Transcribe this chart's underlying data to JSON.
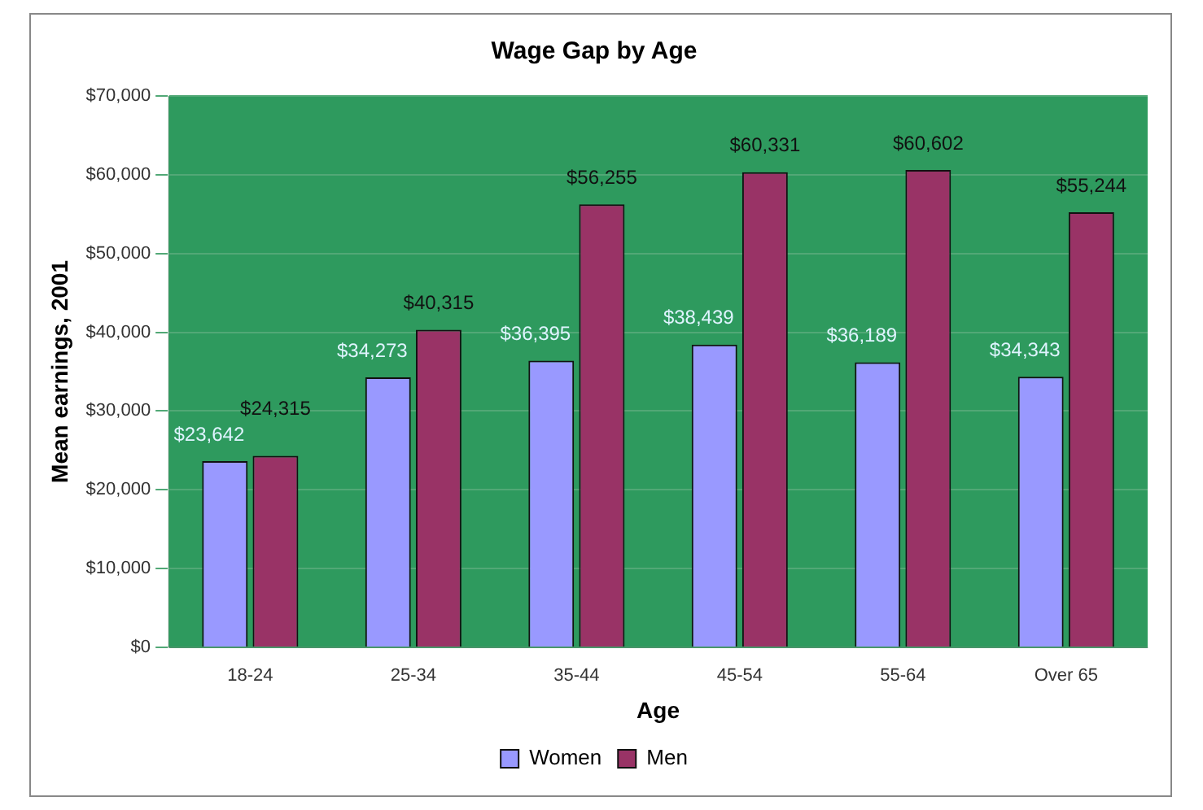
{
  "chart_data": {
    "type": "bar",
    "title": "Wage Gap by Age",
    "xlabel": "Age",
    "ylabel": "Mean earnings, 2001",
    "categories": [
      "18-24",
      "25-34",
      "35-44",
      "45-54",
      "55-64",
      "Over 65"
    ],
    "series": [
      {
        "name": "Women",
        "color": "#9999ff",
        "values": [
          23642,
          34273,
          36395,
          38439,
          36189,
          34343
        ],
        "value_labels": [
          "$23,642",
          "$34,273",
          "$36,395",
          "$38,439",
          "$36,189",
          "$34,343"
        ]
      },
      {
        "name": "Men",
        "color": "#993366",
        "values": [
          24315,
          40315,
          56255,
          60331,
          60602,
          55244
        ],
        "value_labels": [
          "$24,315",
          "$40,315",
          "$56,255",
          "$60,331",
          "$60,602",
          "$55,244"
        ]
      }
    ],
    "ylim": [
      0,
      70000
    ],
    "yticks": [
      {
        "value": 0,
        "label": "$0"
      },
      {
        "value": 10000,
        "label": "$10,000"
      },
      {
        "value": 20000,
        "label": "$20,000"
      },
      {
        "value": 30000,
        "label": "$30,000"
      },
      {
        "value": 40000,
        "label": "$40,000"
      },
      {
        "value": 50000,
        "label": "$50,000"
      },
      {
        "value": 60000,
        "label": "$60,000"
      },
      {
        "value": 70000,
        "label": "$70,000"
      }
    ],
    "grid": "y",
    "legend": "bottom"
  }
}
